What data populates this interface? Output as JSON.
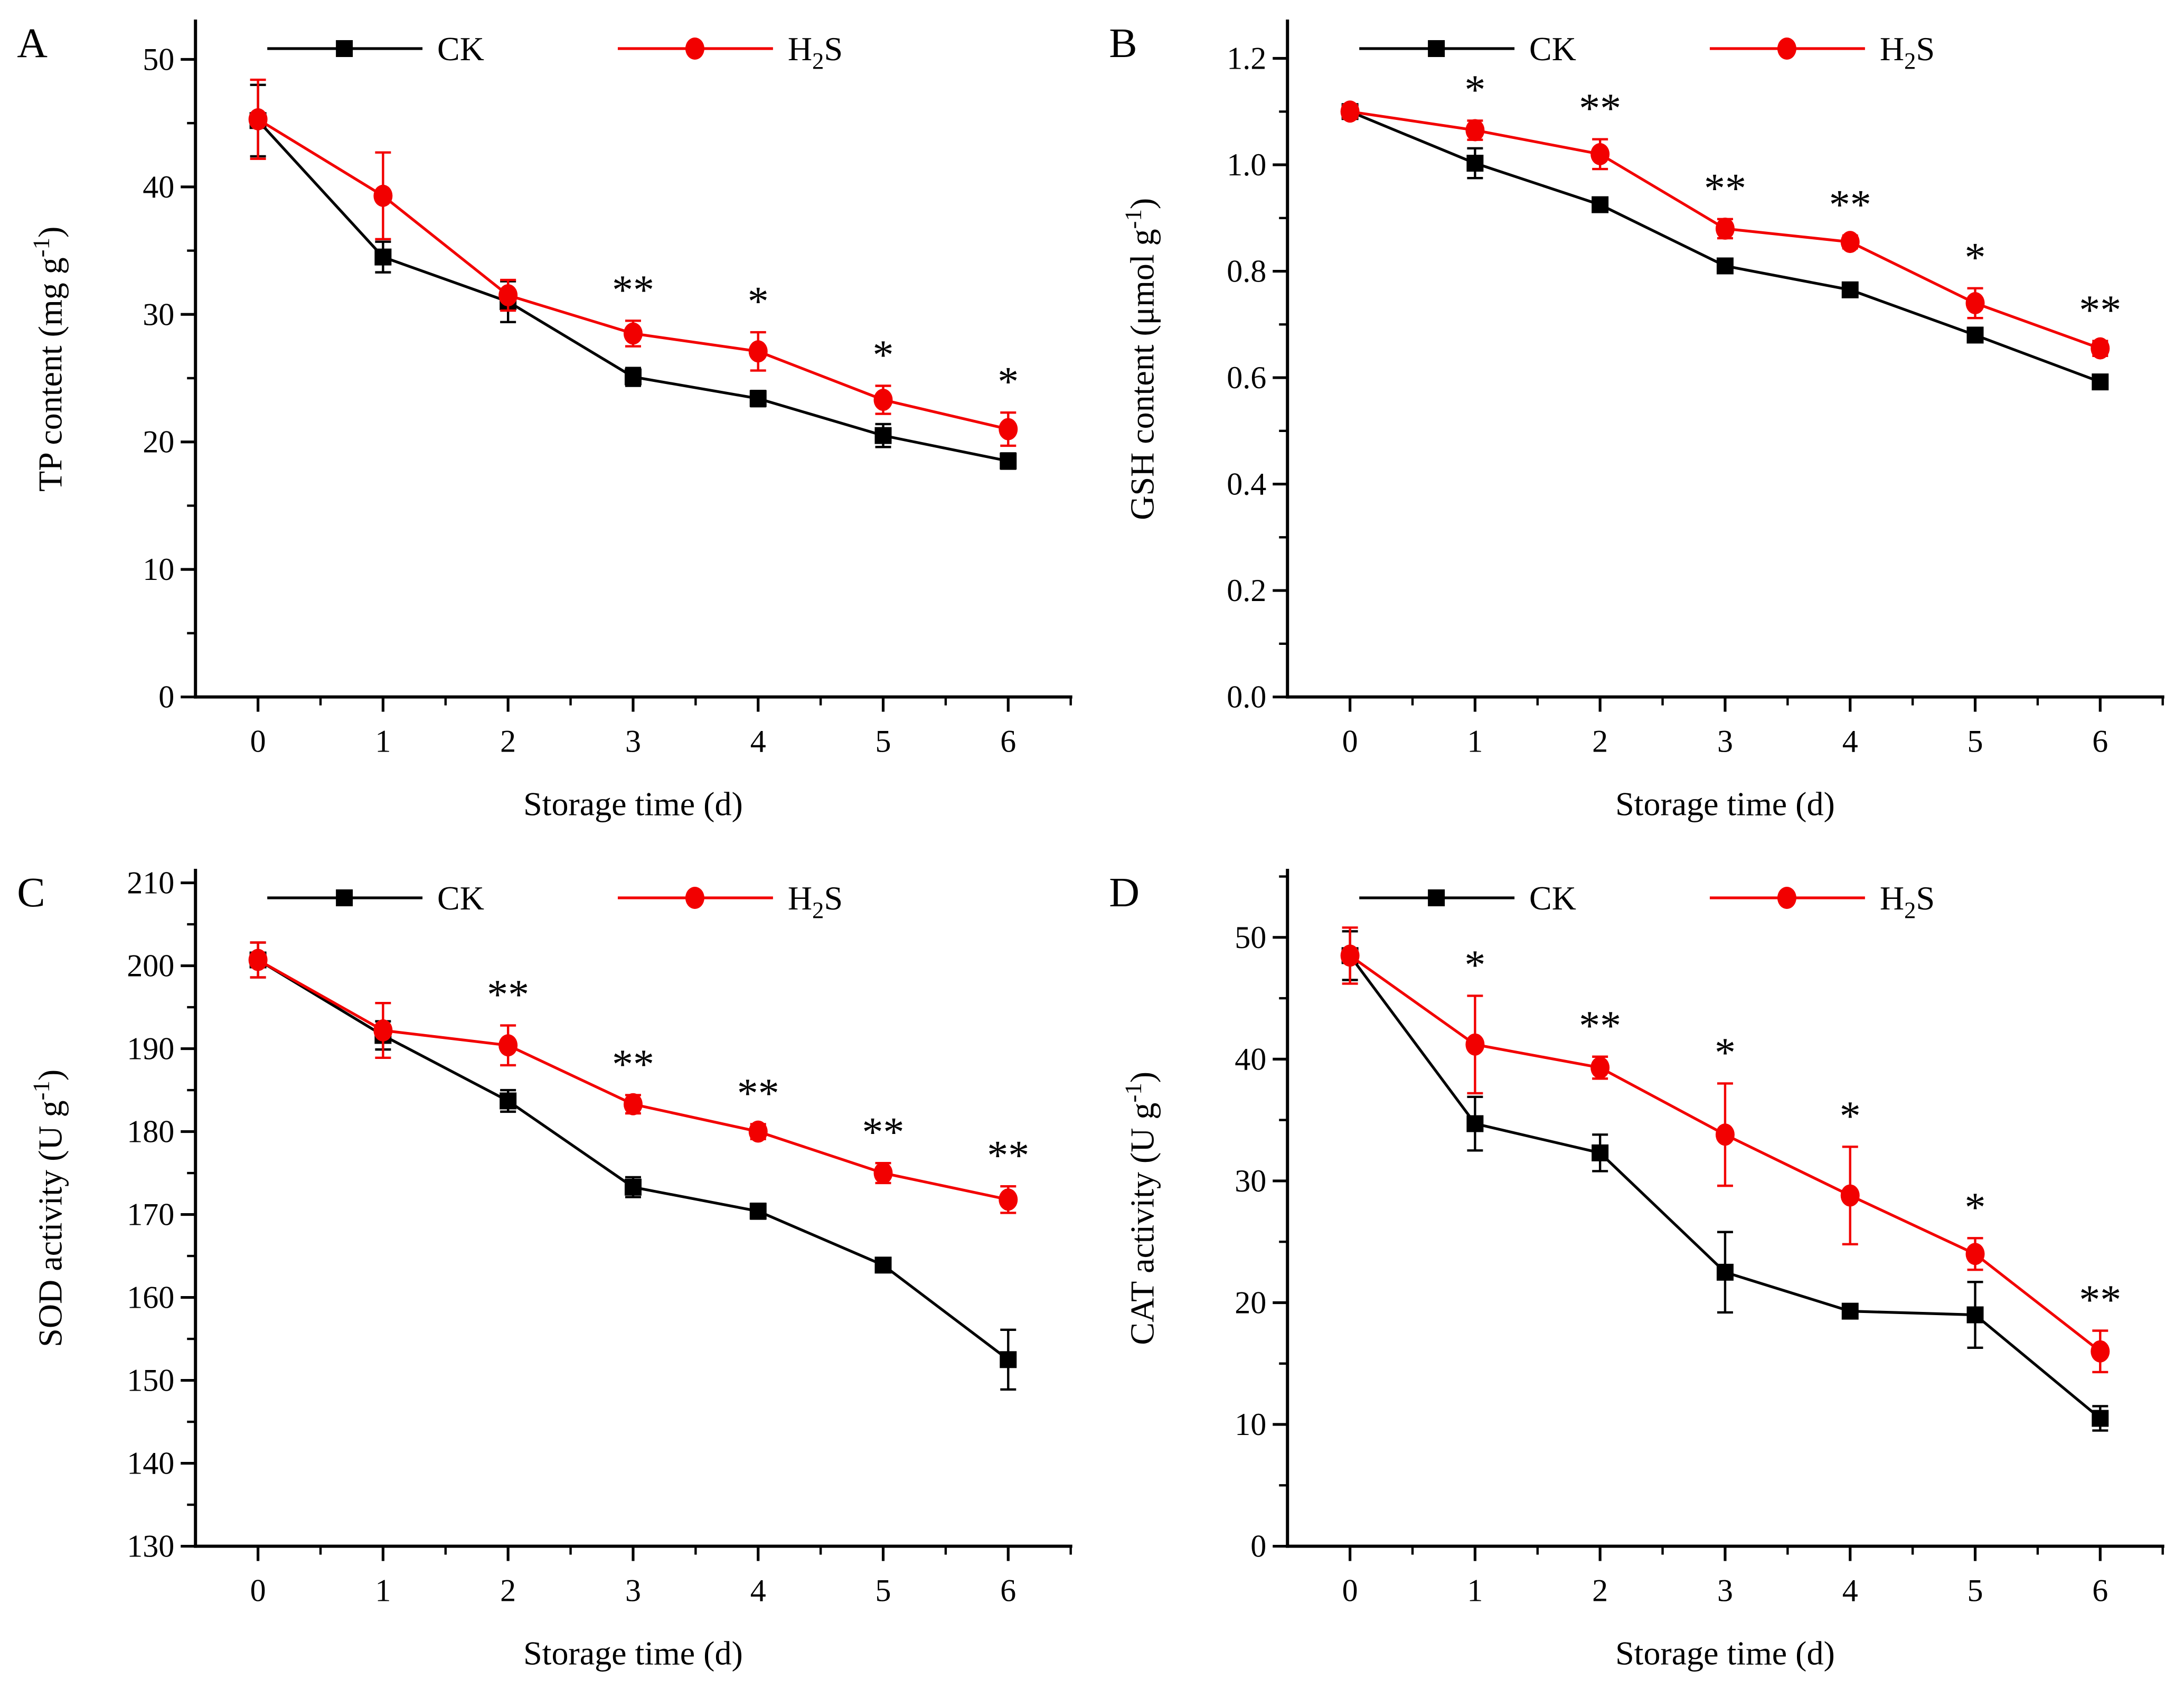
{
  "figure": {
    "background": "#ffffff",
    "accent_colors": {
      "ck": "#000000",
      "h2s": "#f20000"
    },
    "legend": {
      "ck_label": "CK",
      "h2s_label_parts": {
        "pre": "H",
        "sub": "2",
        "post": "S"
      }
    },
    "xlabel": "Storage time (d)"
  },
  "chart_data": [
    {
      "type": "line",
      "panel": "A",
      "xlabel": "Storage time (d)",
      "ylabel_parts": {
        "pre": "TP content (mg g",
        "sup": "-1",
        "post": ")"
      },
      "x": [
        0,
        1,
        2,
        3,
        4,
        5,
        6
      ],
      "xlim": [
        -0.5,
        6.5
      ],
      "ylim": [
        0,
        53
      ],
      "xtick_labels": [
        "0",
        "1",
        "2",
        "3",
        "4",
        "5",
        "6"
      ],
      "yticks": [
        0,
        10,
        20,
        30,
        40,
        50
      ],
      "ytick_labels": [
        "0",
        "10",
        "20",
        "30",
        "40",
        "50"
      ],
      "yminor_step": 5,
      "legend_position": "top-inside",
      "grid": false,
      "series": [
        {
          "name": "CK",
          "marker": "square",
          "color": "#000000",
          "values": [
            45.2,
            34.5,
            31.0,
            25.1,
            23.4,
            20.5,
            18.5
          ],
          "errors": [
            2.8,
            1.2,
            1.6,
            0.7,
            0.6,
            0.9,
            0.6
          ]
        },
        {
          "name": "H2S",
          "marker": "circle",
          "color": "#f20000",
          "values": [
            45.3,
            39.3,
            31.5,
            28.5,
            27.1,
            23.3,
            21.0
          ],
          "errors": [
            3.1,
            3.4,
            1.2,
            1.0,
            1.5,
            1.1,
            1.3
          ]
        }
      ],
      "significance": [
        "",
        "",
        "",
        "**",
        "*",
        "*",
        "*"
      ]
    },
    {
      "type": "line",
      "panel": "B",
      "xlabel": "Storage time (d)",
      "ylabel_parts": {
        "pre": "GSH content (μmol g",
        "sup": "-1",
        "post": ")"
      },
      "x": [
        0,
        1,
        2,
        3,
        4,
        5,
        6
      ],
      "xlim": [
        -0.5,
        6.5
      ],
      "ylim": [
        0,
        1.27
      ],
      "xtick_labels": [
        "0",
        "1",
        "2",
        "3",
        "4",
        "5",
        "6"
      ],
      "yticks": [
        0,
        0.2,
        0.4,
        0.6,
        0.8,
        1.0,
        1.2
      ],
      "ytick_labels": [
        "0.0",
        "0.2",
        "0.4",
        "0.6",
        "0.8",
        "1.0",
        "1.2"
      ],
      "yminor_step": 0.1,
      "legend_position": "top-inside",
      "grid": false,
      "series": [
        {
          "name": "CK",
          "marker": "square",
          "color": "#000000",
          "values": [
            1.1,
            1.003,
            0.925,
            0.81,
            0.765,
            0.68,
            0.592
          ],
          "errors": [
            0.01,
            0.028,
            0.012,
            0.01,
            0.008,
            0.012,
            0.008
          ]
        },
        {
          "name": "H2S",
          "marker": "circle",
          "color": "#f20000",
          "values": [
            1.1,
            1.065,
            1.02,
            0.88,
            0.855,
            0.74,
            0.655
          ],
          "errors": [
            0.012,
            0.018,
            0.028,
            0.018,
            0.012,
            0.028,
            0.014
          ]
        }
      ],
      "significance": [
        "",
        "*",
        "**",
        "**",
        "**",
        "*",
        "**"
      ]
    },
    {
      "type": "line",
      "panel": "C",
      "xlabel": "Storage time (d)",
      "ylabel_parts": {
        "pre": "SOD activity (U g",
        "sup": "-1",
        "post": ")"
      },
      "x": [
        0,
        1,
        2,
        3,
        4,
        5,
        6
      ],
      "xlim": [
        -0.5,
        6.5
      ],
      "ylim": [
        130,
        211.5
      ],
      "xtick_labels": [
        "0",
        "1",
        "2",
        "3",
        "4",
        "5",
        "6"
      ],
      "yticks": [
        130,
        140,
        150,
        160,
        170,
        180,
        190,
        200,
        210
      ],
      "ytick_labels": [
        "130",
        "140",
        "150",
        "160",
        "170",
        "180",
        "190",
        "200",
        "210"
      ],
      "yminor_step": 5,
      "legend_position": "top-inside",
      "grid": false,
      "series": [
        {
          "name": "CK",
          "marker": "square",
          "color": "#000000",
          "values": [
            200.7,
            191.6,
            183.7,
            173.3,
            170.4,
            163.9,
            152.5
          ],
          "errors": [
            2.1,
            1.7,
            1.3,
            1.2,
            0.9,
            0.5,
            3.6
          ]
        },
        {
          "name": "H2S",
          "marker": "circle",
          "color": "#f20000",
          "values": [
            200.7,
            192.2,
            190.4,
            183.3,
            180.0,
            175.0,
            171.8
          ],
          "errors": [
            2.1,
            3.3,
            2.4,
            1.1,
            0.9,
            1.2,
            1.6
          ]
        }
      ],
      "significance": [
        "",
        "",
        "**",
        "**",
        "**",
        "**",
        "**"
      ]
    },
    {
      "type": "line",
      "panel": "D",
      "xlabel": "Storage time (d)",
      "ylabel_parts": {
        "pre": "CAT activity (U g",
        "sup": "-1",
        "post": ")"
      },
      "x": [
        0,
        1,
        2,
        3,
        4,
        5,
        6
      ],
      "xlim": [
        -0.5,
        6.5
      ],
      "ylim": [
        0,
        55.5
      ],
      "xtick_labels": [
        "0",
        "1",
        "2",
        "3",
        "4",
        "5",
        "6"
      ],
      "yticks": [
        0,
        10,
        20,
        30,
        40,
        50
      ],
      "ytick_labels": [
        "0",
        "10",
        "20",
        "30",
        "40",
        "50"
      ],
      "yminor_step": 5,
      "legend_position": "top-inside",
      "grid": false,
      "series": [
        {
          "name": "CK",
          "marker": "square",
          "color": "#000000",
          "values": [
            48.5,
            34.7,
            32.3,
            22.5,
            19.3,
            19.0,
            10.5
          ],
          "errors": [
            2.0,
            2.2,
            1.5,
            3.3,
            0.4,
            2.7,
            1.0
          ]
        },
        {
          "name": "H2S",
          "marker": "circle",
          "color": "#f20000",
          "values": [
            48.5,
            41.2,
            39.3,
            33.8,
            28.8,
            24.0,
            16.0
          ],
          "errors": [
            2.3,
            4.0,
            0.9,
            4.2,
            4.0,
            1.3,
            1.7
          ]
        }
      ],
      "significance": [
        "",
        "*",
        "**",
        "*",
        "*",
        "*",
        "**"
      ]
    }
  ]
}
